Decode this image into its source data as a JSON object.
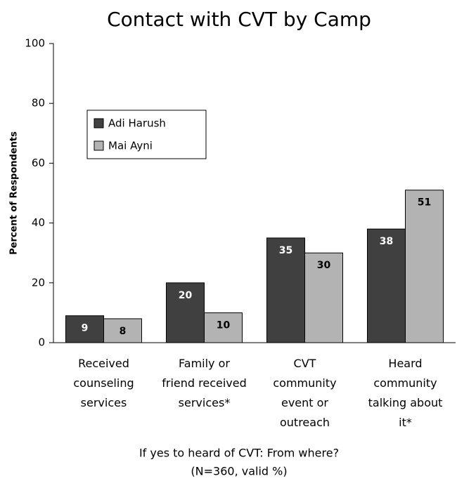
{
  "chart_data": {
    "type": "bar",
    "title": "Contact with CVT by Camp",
    "ylabel": "Percent of Respondents",
    "xlabel": "If yes to heard of CVT: From where?",
    "note": "(N=360, valid %)",
    "categories": [
      "Received\ncounseling\nservices",
      "Family or\nfriend received\nservices*",
      "CVT\ncommunity\nevent or\noutreach",
      "Heard\ncommunity\ntalking about\nit*"
    ],
    "series": [
      {
        "name": "Adi Harush",
        "color": "#404040",
        "values": [
          9,
          20,
          35,
          38
        ]
      },
      {
        "name": "Mai Ayni",
        "color": "#b3b3b3",
        "values": [
          8,
          10,
          30,
          51
        ]
      }
    ],
    "ylim": [
      0,
      100
    ],
    "yticks": [
      0,
      20,
      40,
      60,
      80,
      100
    ],
    "grid": false,
    "legend": "upper left"
  }
}
